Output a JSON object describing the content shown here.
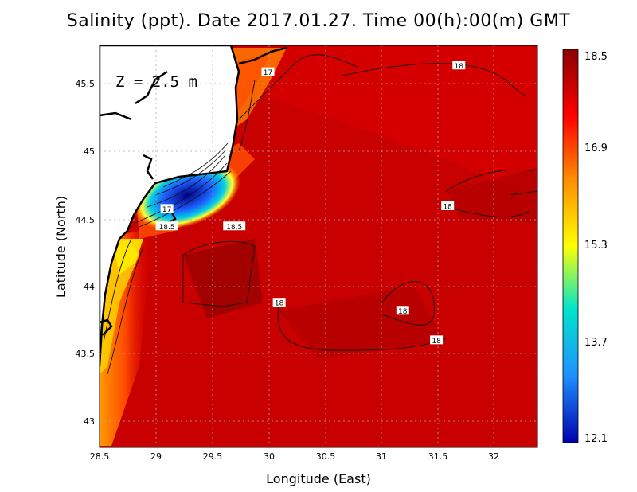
{
  "title": "Salinity (ppt). Date 2017.01.27. Time 00(h):00(m) GMT",
  "depth_label": "Z = 2.5 m",
  "axes": {
    "xlabel": "Longitude (East)",
    "ylabel": "Latitude (North)",
    "xticks": [
      "28.5",
      "29",
      "29.5",
      "30",
      "30.5",
      "31",
      "31.5",
      "32"
    ],
    "yticks": [
      "45.5",
      "45",
      "44.5",
      "44",
      "43.5",
      "43"
    ],
    "xlim": [
      28.5,
      32.4
    ],
    "ylim": [
      42.8,
      45.8
    ]
  },
  "colorbar": {
    "labels": [
      "18.5",
      "16.9",
      "15.3",
      "13.7",
      "12.1"
    ],
    "min": 12.1,
    "max": 18.5,
    "colors": [
      "#8b0000",
      "#ff0000",
      "#ff8c00",
      "#ffff00",
      "#00e5cc",
      "#1e90ff",
      "#0000b0"
    ]
  },
  "contour_labels": [
    {
      "text": "17",
      "lon": 30.0,
      "lat": 45.6
    },
    {
      "text": "18",
      "lon": 31.7,
      "lat": 45.65
    },
    {
      "text": "18",
      "lon": 31.6,
      "lat": 44.6
    },
    {
      "text": "18.5",
      "lon": 29.7,
      "lat": 44.45
    },
    {
      "text": "18.5",
      "lon": 29.1,
      "lat": 44.45
    },
    {
      "text": "17",
      "lon": 29.1,
      "lat": 44.58
    },
    {
      "text": "18",
      "lon": 30.1,
      "lat": 43.88
    },
    {
      "text": "18",
      "lon": 31.2,
      "lat": 43.82
    },
    {
      "text": "18",
      "lon": 31.5,
      "lat": 43.6
    }
  ],
  "colors": {
    "land": "#ffffff",
    "coast": "#000000",
    "grid": "#aaaaaa"
  }
}
